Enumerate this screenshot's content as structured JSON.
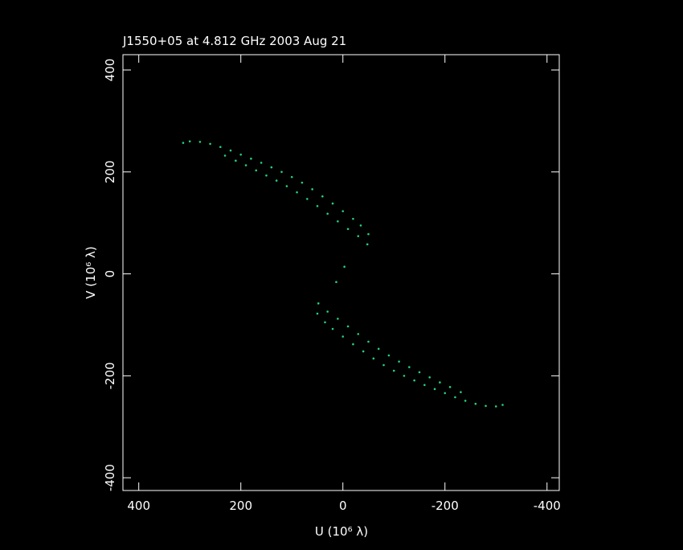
{
  "chart_data": {
    "type": "scatter",
    "title": "J1550+05 at 4.812 GHz 2003 Aug 21",
    "x_label": "U (10⁶ λ)",
    "y_label": "V (10⁶ λ)",
    "xlim": [
      431,
      -424
    ],
    "ylim": [
      -425,
      430
    ],
    "xticks": [
      400,
      200,
      0,
      -200,
      -400
    ],
    "yticks": [
      -400,
      -200,
      0,
      200,
      400
    ],
    "series": [
      {
        "color": "#22d37a",
        "x": [
          313,
          300,
          280,
          260,
          240,
          220,
          200,
          180,
          160,
          140,
          120,
          100,
          80,
          60,
          40,
          20,
          0,
          -20,
          -35,
          -50,
          231,
          210,
          190,
          170,
          150,
          130,
          110,
          90,
          70,
          50,
          30,
          10,
          -10,
          -30,
          -48,
          -313,
          -300,
          -280,
          -260,
          -240,
          -220,
          -200,
          -180,
          -160,
          -140,
          -120,
          -100,
          -80,
          -60,
          -40,
          -20,
          0,
          20,
          35,
          50,
          -231,
          -210,
          -190,
          -170,
          -150,
          -130,
          -110,
          -90,
          -70,
          -50,
          -30,
          -10,
          10,
          30,
          48,
          -3,
          13
        ],
        "values": [
          257,
          260,
          259,
          255,
          249,
          242,
          234,
          226,
          218,
          209,
          200,
          190,
          179,
          166,
          152,
          138,
          123,
          108,
          95,
          78,
          232,
          222,
          213,
          203,
          193,
          183,
          172,
          160,
          147,
          133,
          118,
          103,
          88,
          74,
          58,
          -257,
          -260,
          -259,
          -255,
          -249,
          -242,
          -234,
          -226,
          -218,
          -209,
          -200,
          -190,
          -179,
          -166,
          -152,
          -138,
          -123,
          -108,
          -95,
          -78,
          -232,
          -222,
          -213,
          -203,
          -193,
          -183,
          -172,
          -160,
          -147,
          -133,
          -118,
          -103,
          -88,
          -74,
          -58,
          14,
          -16
        ]
      }
    ]
  }
}
